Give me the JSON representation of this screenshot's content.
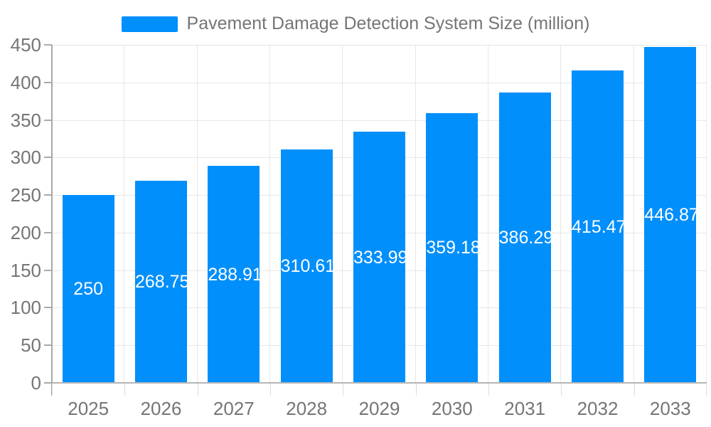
{
  "chart_data": {
    "type": "bar",
    "title": "Pavement Damage Detection System Size (million)",
    "categories": [
      "2025",
      "2026",
      "2027",
      "2028",
      "2029",
      "2030",
      "2031",
      "2032",
      "2033"
    ],
    "values": [
      250,
      268.75,
      288.91,
      310.61,
      333.99,
      359.18,
      386.29,
      415.47,
      446.87
    ],
    "value_labels": [
      "250",
      "268.75",
      "288.91",
      "310.61",
      "333.99",
      "359.18",
      "386.29",
      "415.47",
      "446.87"
    ],
    "xlabel": "",
    "ylabel": "",
    "ylim": [
      0,
      450
    ],
    "yticks": [
      0,
      50,
      100,
      150,
      200,
      250,
      300,
      350,
      400,
      450
    ],
    "grid": true,
    "legend_position": "top",
    "colors": {
      "bar": "#008FFB",
      "value_label": "#ffffff",
      "axis_text": "#757575",
      "gridline": "#e7e7e7",
      "axis_line": "#b6b6b6",
      "background": "#ffffff"
    }
  }
}
